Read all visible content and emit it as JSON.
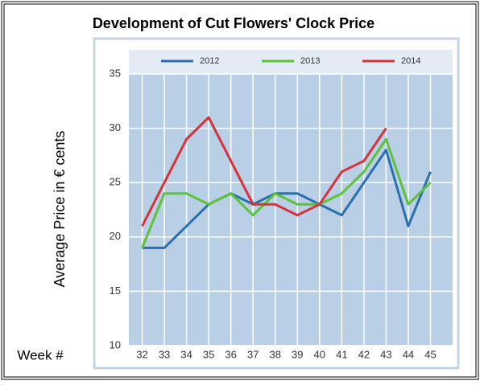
{
  "chart_data": {
    "type": "line",
    "title": "Development of Cut Flowers' Clock Price",
    "y_label": "Average Price in € cents",
    "x_label": "Week #",
    "x": [
      32,
      33,
      34,
      35,
      36,
      37,
      38,
      39,
      40,
      41,
      42,
      43,
      44,
      45
    ],
    "xlim": [
      31.4,
      46
    ],
    "xticks": [
      32,
      33,
      34,
      35,
      36,
      37,
      38,
      39,
      40,
      41,
      42,
      43,
      44,
      45
    ],
    "ylim": [
      10,
      35
    ],
    "yticks": [
      10,
      15,
      20,
      25,
      30,
      35
    ],
    "grid": true,
    "legend": "top",
    "series": [
      {
        "name": "2012",
        "color": "#2a6fb0",
        "values": [
          19,
          19,
          21,
          23,
          24,
          23,
          24,
          24,
          23,
          22,
          25,
          28,
          21,
          26
        ]
      },
      {
        "name": "2013",
        "color": "#5cc23a",
        "values": [
          19,
          24,
          24,
          23,
          24,
          22,
          24,
          23,
          23,
          24,
          26,
          29,
          23,
          25
        ]
      },
      {
        "name": "2014",
        "color": "#d6323a",
        "values": [
          21,
          25,
          29,
          31,
          27,
          23,
          23,
          22,
          23,
          26,
          27,
          30,
          null,
          null
        ]
      }
    ]
  }
}
